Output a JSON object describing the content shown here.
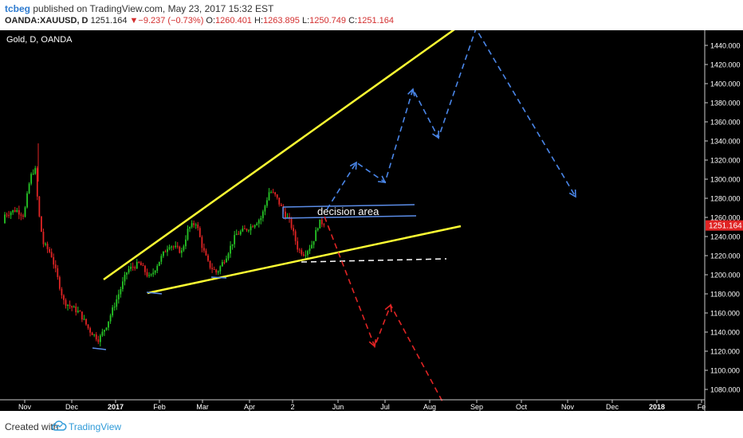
{
  "header": {
    "author": "tcbeg",
    "published_text": "published on TradingView.com, May 23, 2017 15:32 EST",
    "symbol": "OANDA:XAUUSD, D",
    "last": "1251.164",
    "change_arrow": "▼",
    "change": "−9.237 (−0.73%)",
    "open_label": "O:",
    "open": "1260.401",
    "high_label": "H:",
    "high": "1263.895",
    "low_label": "L:",
    "low": "1250.749",
    "close_label": "C:",
    "close": "1251.164"
  },
  "footer": {
    "created_with": "Created with",
    "brand": "TradingView",
    "logo_icon": "tradingview-cloud-icon"
  },
  "chart_data": {
    "type": "candlestick",
    "title": "Gold, D, OANDA",
    "price_label": "1251.164",
    "annotation": "decision area",
    "y_ticks": [
      "1440.000",
      "1420.000",
      "1400.000",
      "1380.000",
      "1360.000",
      "1340.000",
      "1320.000",
      "1300.000",
      "1280.000",
      "1260.000",
      "1240.000",
      "1220.000",
      "1200.000",
      "1180.000",
      "1160.000",
      "1140.000",
      "1120.000",
      "1100.000",
      "1080.000"
    ],
    "x_ticks": [
      "Nov",
      "Dec",
      "2017",
      "Feb",
      "Mar",
      "Apr",
      "2",
      "Jun",
      "Jul",
      "Aug",
      "Sep",
      "Oct",
      "Nov",
      "Dec",
      "2018",
      "Fe"
    ],
    "ylim": [
      1068,
      1458
    ],
    "colors": {
      "background": "#000000",
      "up": "#26c626",
      "down": "#e02424",
      "channel": "#ffff33",
      "zone": "#5b8de8",
      "bull_path": "#4a86e8",
      "bear_path": "#e02424",
      "price_tag": "#e02424"
    }
  }
}
